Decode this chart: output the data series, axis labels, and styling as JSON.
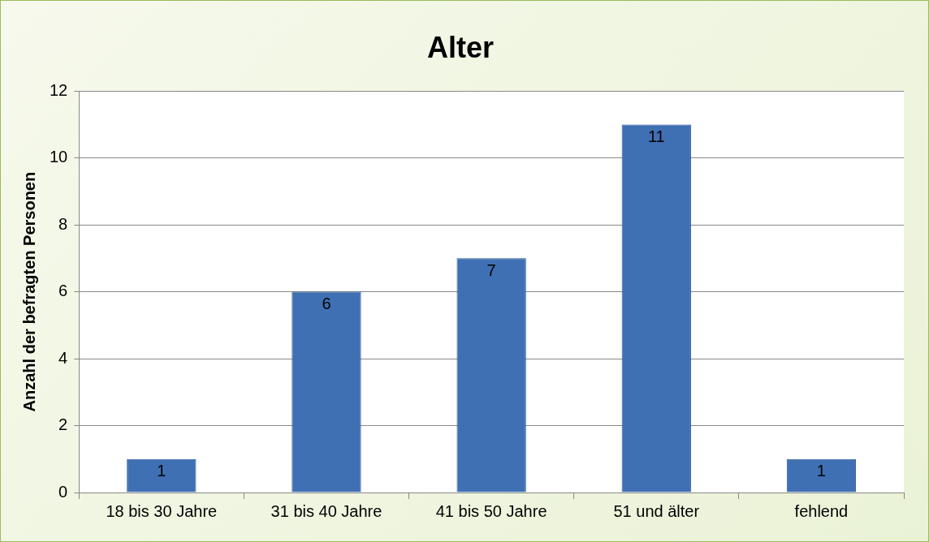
{
  "chart_data": {
    "type": "bar",
    "title": "Alter",
    "ylabel": "Anzahl der befragten Personen",
    "categories": [
      "18 bis 30 Jahre",
      "31 bis 40 Jahre",
      "41 bis 50 Jahre",
      "51 und älter",
      "fehlend"
    ],
    "values": [
      1,
      6,
      7,
      11,
      1
    ],
    "color": "#3f70b3",
    "ylim": [
      0,
      12
    ],
    "yticks": [
      0,
      2,
      4,
      6,
      8,
      10,
      12
    ],
    "grid": "y",
    "data_labels": true
  }
}
